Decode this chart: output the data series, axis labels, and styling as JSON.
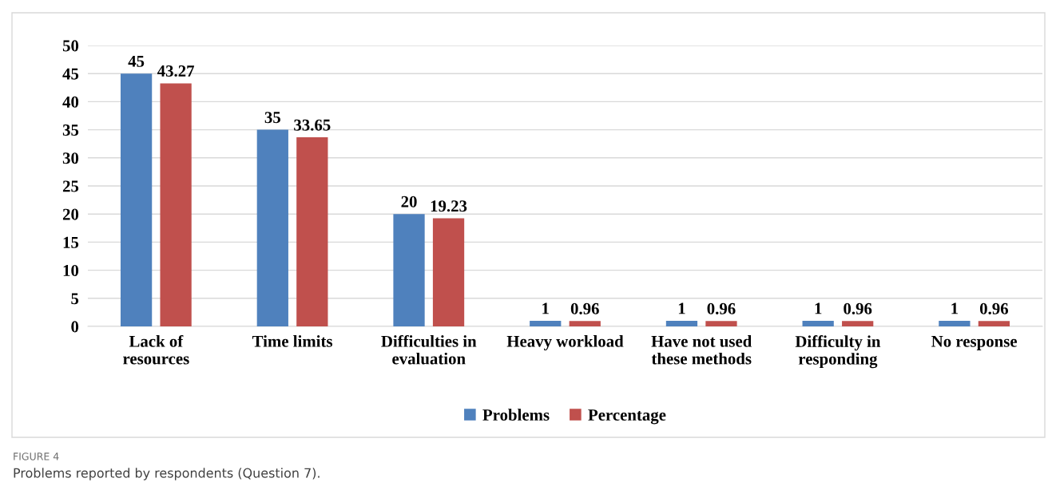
{
  "chart_data": {
    "type": "bar",
    "categories": [
      "Lack of\nresources",
      "Time limits",
      "Difficulties in\nevaluation",
      "Heavy workload",
      "Have not used\nthese methods",
      "Difficulty in\nresponding",
      "No response"
    ],
    "series": [
      {
        "name": "Problems",
        "color": "#4f81bd",
        "values": [
          45,
          35,
          20,
          1,
          1,
          1,
          1
        ]
      },
      {
        "name": "Percentage",
        "color": "#c0504d",
        "values": [
          43.27,
          33.65,
          19.23,
          0.96,
          0.96,
          0.96,
          0.96
        ]
      }
    ],
    "ylim": [
      0,
      50
    ],
    "yticks": [
      0,
      5,
      10,
      15,
      20,
      25,
      30,
      35,
      40,
      45,
      50
    ],
    "grid": "y",
    "legend": "bottom",
    "data_labels": true,
    "annotations": [
      "FIGURE 4",
      "Problems reported by respondents (Question 7)."
    ]
  }
}
